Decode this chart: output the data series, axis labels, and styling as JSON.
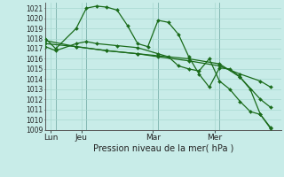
{
  "background_color": "#c8ece8",
  "grid_color": "#a8d8d0",
  "line_color": "#1a6b1a",
  "marker_color": "#1a6b1a",
  "xlabel": "Pression niveau de la mer( hPa )",
  "ylim": [
    1009,
    1021.5
  ],
  "yticks": [
    1009,
    1010,
    1011,
    1012,
    1013,
    1014,
    1015,
    1016,
    1017,
    1018,
    1019,
    1020,
    1021
  ],
  "day_labels": [
    "Lun",
    "Jeu",
    "Mar",
    "Mer"
  ],
  "day_positions": [
    0.5,
    3.5,
    10.5,
    16.5
  ],
  "vline_positions": [
    1.0,
    4.0,
    11.0,
    17.0
  ],
  "xlim": [
    0,
    23
  ],
  "series": [
    {
      "x": [
        0,
        1,
        3,
        4,
        5,
        6,
        7,
        8,
        9,
        10,
        11,
        12,
        13,
        14,
        15,
        16,
        17,
        18,
        19,
        20,
        21,
        22
      ],
      "y": [
        1018.0,
        1017.0,
        1019.0,
        1021.0,
        1021.2,
        1021.1,
        1020.8,
        1019.3,
        1017.5,
        1017.2,
        1019.8,
        1019.6,
        1018.4,
        1016.2,
        1014.5,
        1013.2,
        1015.1,
        1015.0,
        1014.2,
        1013.0,
        1010.5,
        1009.1
      ]
    },
    {
      "x": [
        0,
        1,
        3,
        4,
        5,
        7,
        9,
        11,
        12,
        13,
        14,
        15,
        16,
        17,
        18,
        19,
        20,
        21,
        22
      ],
      "y": [
        1017.2,
        1016.8,
        1017.5,
        1017.7,
        1017.5,
        1017.3,
        1017.1,
        1016.5,
        1016.2,
        1015.3,
        1015.0,
        1014.8,
        1016.0,
        1013.8,
        1013.0,
        1011.8,
        1010.8,
        1010.5,
        1009.2
      ]
    },
    {
      "x": [
        0,
        3,
        6,
        9,
        11,
        14,
        17,
        19,
        21,
        22
      ],
      "y": [
        1017.5,
        1017.2,
        1016.8,
        1016.5,
        1016.3,
        1016.0,
        1015.5,
        1014.2,
        1012.0,
        1011.2
      ]
    },
    {
      "x": [
        0,
        3,
        6,
        9,
        11,
        14,
        17,
        19,
        21,
        22
      ],
      "y": [
        1017.8,
        1017.2,
        1016.8,
        1016.5,
        1016.2,
        1015.8,
        1015.3,
        1014.5,
        1013.8,
        1013.2
      ]
    }
  ]
}
